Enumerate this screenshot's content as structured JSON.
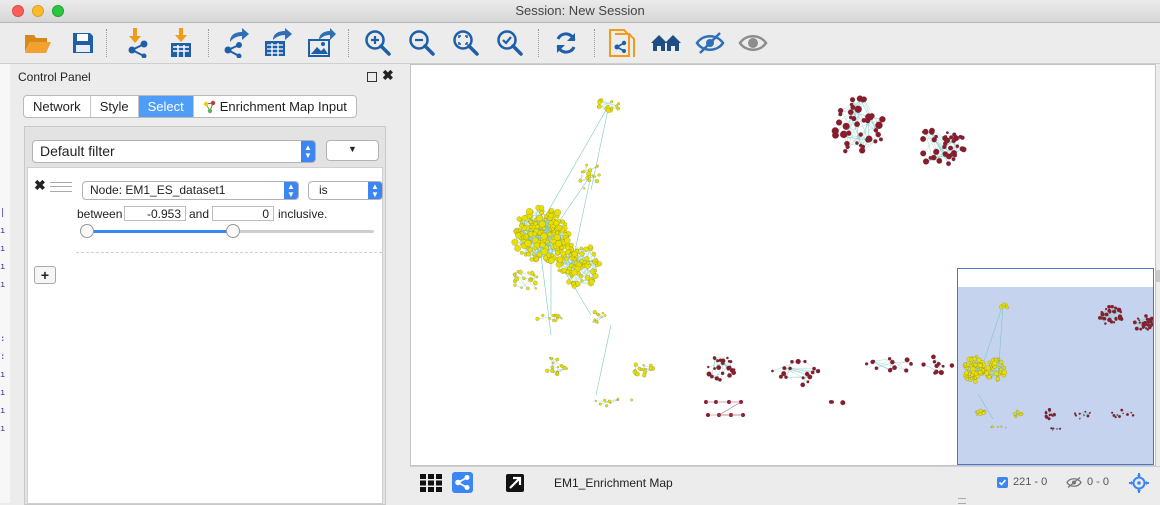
{
  "window": {
    "title": "Session: New Session",
    "controls": [
      "close",
      "minimize",
      "zoom"
    ]
  },
  "toolbar": {
    "buttons": [
      "open-session",
      "save-session",
      "import-network",
      "import-table",
      "export-network",
      "export-table",
      "export-image",
      "zoom-in",
      "zoom-out",
      "zoom-fit",
      "zoom-selected",
      "refresh",
      "new-network-from-selection",
      "show-all-home",
      "hide-selected",
      "show-all"
    ]
  },
  "control_panel": {
    "title": "Control Panel",
    "tabs": [
      {
        "label": "Network"
      },
      {
        "label": "Style"
      },
      {
        "label": "Select",
        "active": true
      },
      {
        "label": "Enrichment Map Input"
      }
    ],
    "filter": {
      "selected": "Default filter",
      "condition": {
        "column": "Node: EM1_ES_dataset1",
        "operator": "is",
        "between_label": "between",
        "min": "-0.953",
        "and_label": "and",
        "max": "0",
        "inclusive_label": "inclusive.",
        "range_low_fraction": 0.0,
        "range_high_fraction": 0.52
      }
    }
  },
  "network": {
    "name": "EM1_Enrichment Map",
    "selected_nodes": "221 - 0",
    "hidden_nodes": "0 - 0"
  },
  "colors": {
    "accent": "#3b86f2",
    "node_yellow": "#e8e000",
    "node_red": "#8b1a2b",
    "edge": "#7ec8c0",
    "overview_bg": "#c5d3ef",
    "overview_border": "#4a73d9"
  }
}
